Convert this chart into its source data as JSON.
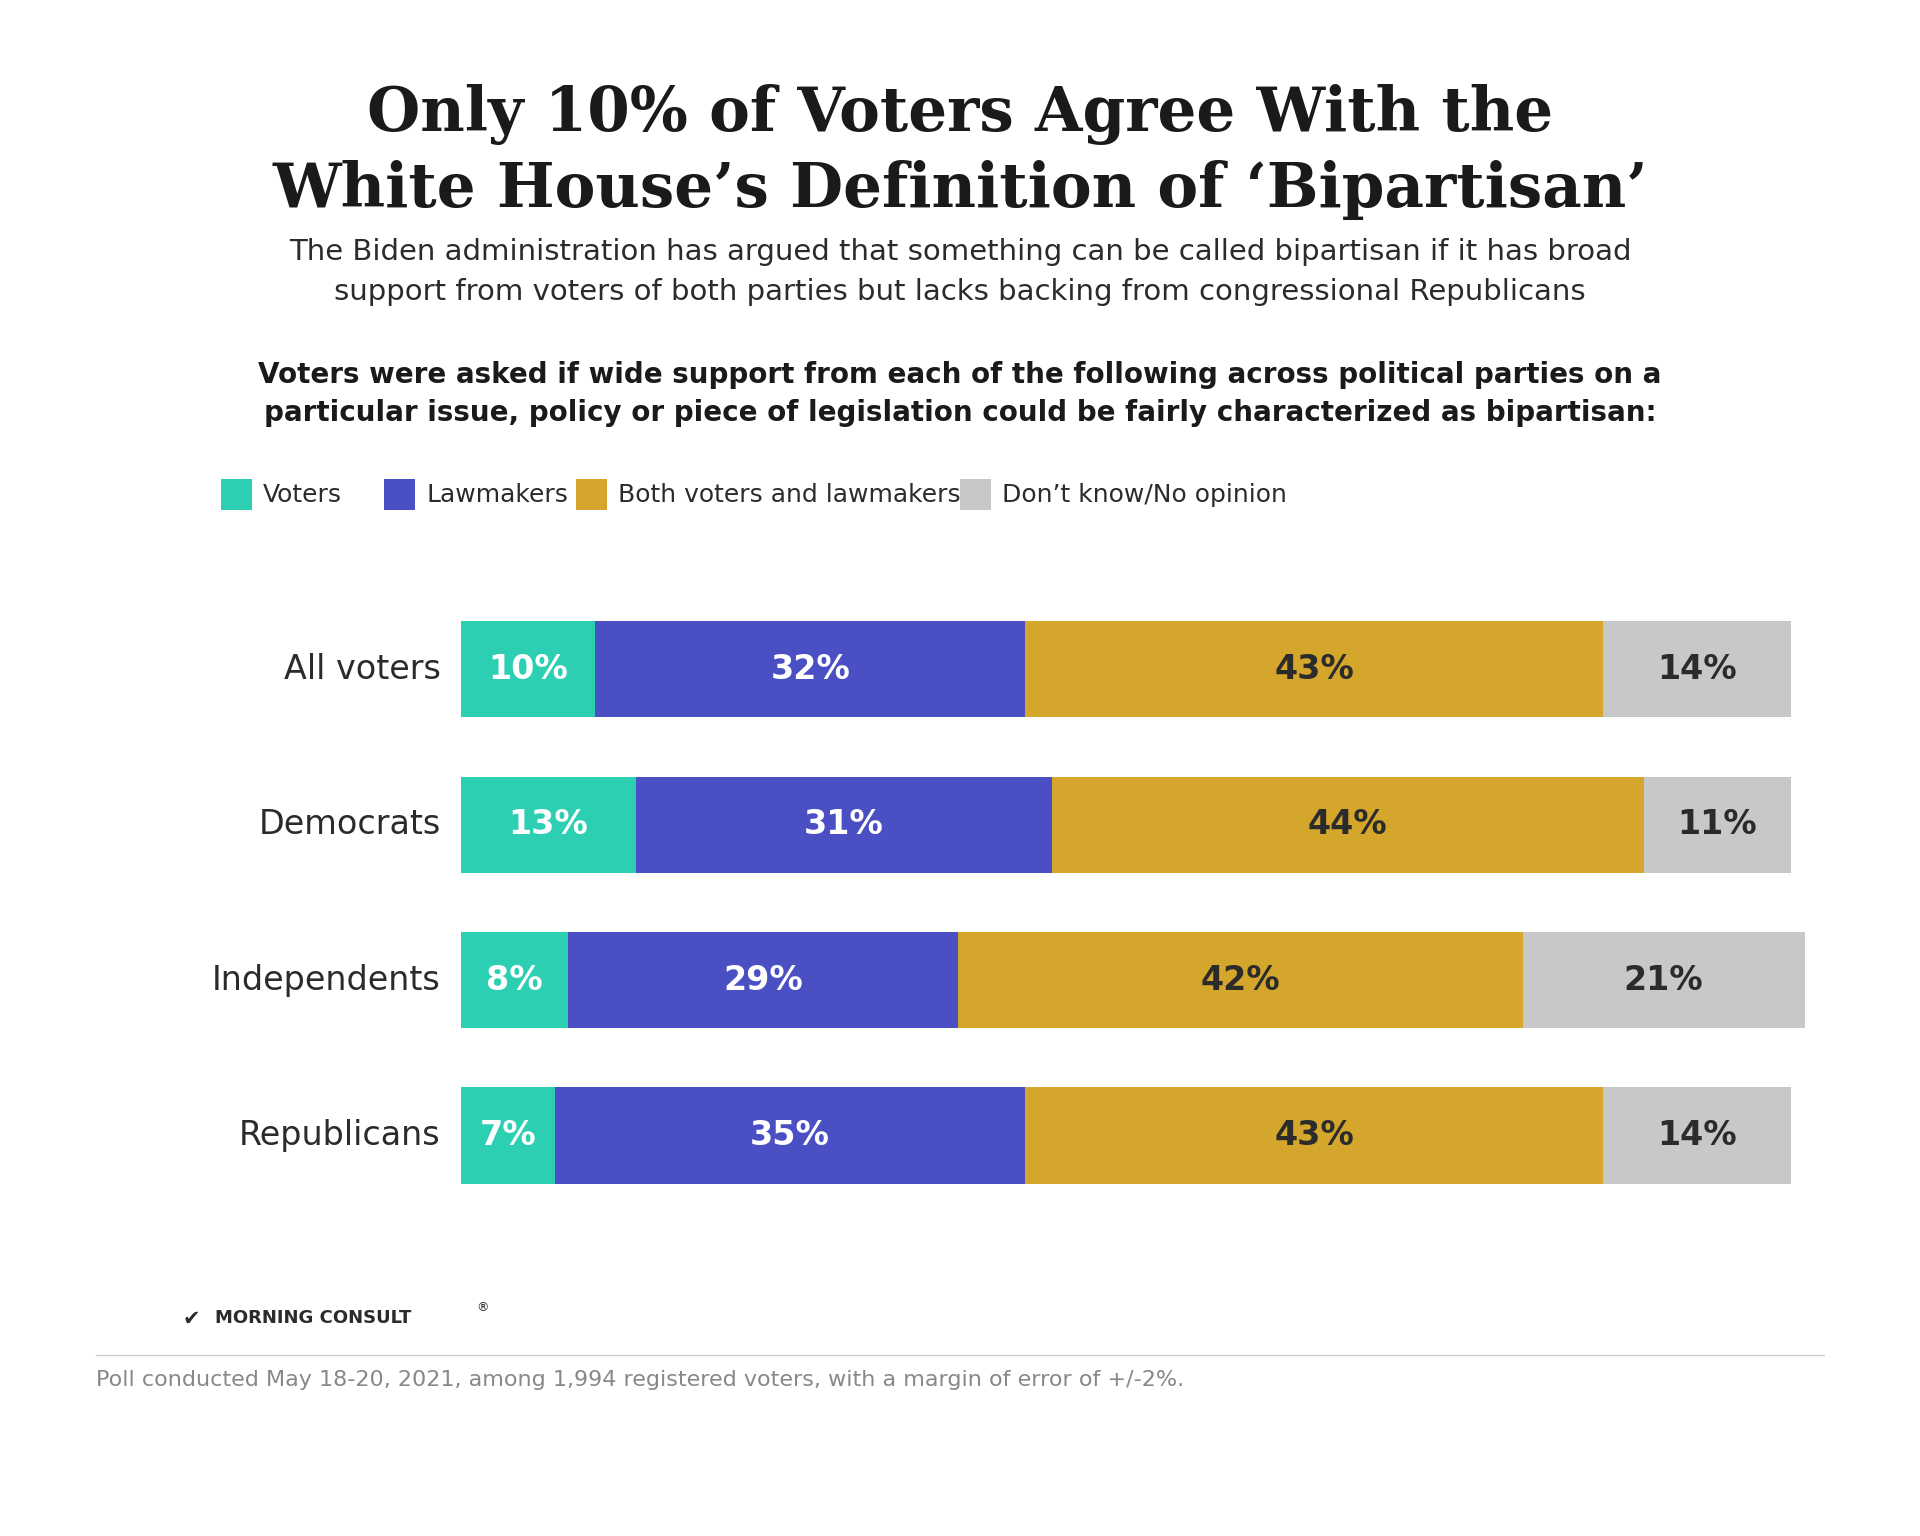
{
  "title_line1": "Only 10% of Voters Agree With the",
  "title_line2": "White House’s Definition of ‘Bipartisan’",
  "subtitle": "The Biden administration has argued that something can be called bipartisan if it has broad\nsupport from voters of both parties but lacks backing from congressional Republicans",
  "question": "Voters were asked if wide support from each of the following across political parties on a\nparticular issue, policy or piece of legislation could be fairly characterized as bipartisan:",
  "categories": [
    "All voters",
    "Democrats",
    "Independents",
    "Republicans"
  ],
  "series": {
    "Voters": [
      10,
      13,
      8,
      7
    ],
    "Lawmakers": [
      32,
      31,
      29,
      35
    ],
    "Both voters and lawmakers": [
      43,
      44,
      42,
      43
    ],
    "Don’t know/No opinion": [
      14,
      11,
      21,
      14
    ]
  },
  "colors": {
    "Voters": "#2dcfb3",
    "Lawmakers": "#4a4fc4",
    "Both voters and lawmakers": "#d4a72c",
    "Don’t know/No opinion": "#c8c8c8"
  },
  "bar_text_colors": {
    "Voters": "#ffffff",
    "Lawmakers": "#ffffff",
    "Both voters and lawmakers": "#2b2b2b",
    "Don’t know/No opinion": "#2b2b2b"
  },
  "top_bar_color": "#2dcfb3",
  "background_color": "#ffffff",
  "footnote": "Poll conducted May 18-20, 2021, among 1,994 registered voters, with a margin of error of +/-2%.",
  "logo_text": "MORNING CONSULT"
}
